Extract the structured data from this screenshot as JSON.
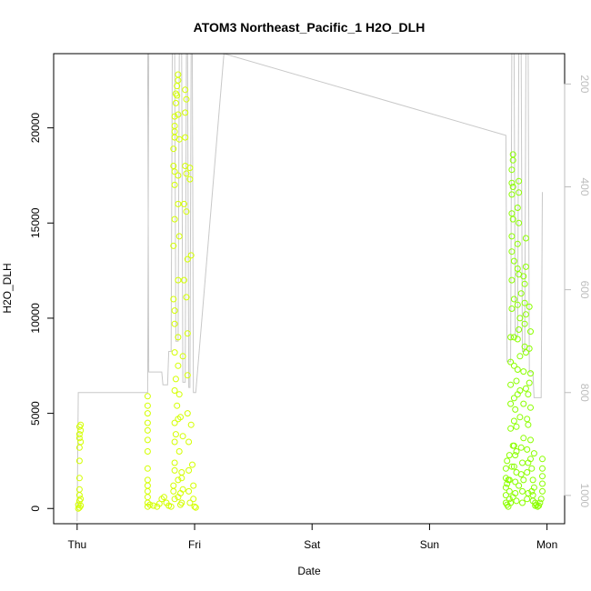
{
  "chart_data": {
    "type": "scatter",
    "title": "ATOM3 Northeast_Pacific_1 H2O_DLH",
    "xlabel": "Date",
    "ylabel": "H2O_DLH",
    "x_ticks": [
      "Thu",
      "Fri",
      "Sat",
      "Sun",
      "Mon"
    ],
    "x_range_days": [
      -0.2,
      4.15
    ],
    "ylim": [
      -800,
      23900
    ],
    "y_ticks": [
      0,
      5000,
      10000,
      15000,
      20000
    ],
    "right_axis": {
      "ticks": [
        200,
        400,
        600,
        800,
        1000
      ],
      "range_top_to_bottom": [
        141,
        1055
      ],
      "line_color": "#c8c8c8",
      "tick_label_color": "#bdbdbd",
      "pressure_trace": [
        [
          0.0,
          1050
        ],
        [
          0.01,
          800
        ],
        [
          0.6,
          800
        ],
        [
          0.61,
          141
        ],
        [
          0.6,
          141
        ],
        [
          0.61,
          760
        ],
        [
          0.72,
          760
        ],
        [
          0.73,
          785
        ],
        [
          0.77,
          785
        ],
        [
          0.78,
          720
        ],
        [
          0.8,
          720
        ],
        [
          0.81,
          141
        ],
        [
          0.83,
          141
        ],
        [
          0.84,
          700
        ],
        [
          0.86,
          700
        ],
        [
          0.87,
          141
        ],
        [
          0.89,
          141
        ],
        [
          0.9,
          780
        ],
        [
          0.92,
          780
        ],
        [
          0.93,
          141
        ],
        [
          0.94,
          141
        ],
        [
          0.95,
          790
        ],
        [
          0.96,
          790
        ],
        [
          0.97,
          141
        ],
        [
          0.98,
          141
        ],
        [
          0.99,
          800
        ],
        [
          1.01,
          800
        ],
        [
          1.25,
          141
        ],
        [
          3.65,
          300
        ],
        [
          3.66,
          740
        ],
        [
          3.69,
          740
        ],
        [
          3.7,
          141
        ],
        [
          3.72,
          141
        ],
        [
          3.73,
          690
        ],
        [
          3.75,
          690
        ],
        [
          3.76,
          141
        ],
        [
          3.78,
          141
        ],
        [
          3.79,
          720
        ],
        [
          3.81,
          720
        ],
        [
          3.82,
          141
        ],
        [
          3.84,
          141
        ],
        [
          3.85,
          760
        ],
        [
          3.88,
          760
        ],
        [
          3.89,
          810
        ],
        [
          3.95,
          810
        ],
        [
          3.96,
          410
        ]
      ]
    },
    "series": [
      {
        "color": "#d4ff00",
        "points": [
          [
            0.01,
            0
          ],
          [
            0.01,
            200
          ],
          [
            0.02,
            400
          ],
          [
            0.02,
            700
          ],
          [
            0.02,
            1000
          ],
          [
            0.02,
            1600
          ],
          [
            0.02,
            2500
          ],
          [
            0.02,
            3200
          ],
          [
            0.03,
            3500
          ],
          [
            0.02,
            3700
          ],
          [
            0.02,
            3900
          ],
          [
            0.03,
            4100
          ],
          [
            0.02,
            4300
          ],
          [
            0.03,
            4400
          ],
          [
            0.03,
            500
          ],
          [
            0.03,
            150
          ],
          [
            0.02,
            50
          ],
          [
            0.6,
            100
          ],
          [
            0.6,
            300
          ],
          [
            0.6,
            600
          ],
          [
            0.6,
            900
          ],
          [
            0.6,
            1200
          ],
          [
            0.6,
            1500
          ],
          [
            0.6,
            2100
          ],
          [
            0.6,
            3000
          ],
          [
            0.6,
            3600
          ],
          [
            0.6,
            4100
          ],
          [
            0.6,
            4500
          ],
          [
            0.6,
            5000
          ],
          [
            0.6,
            5400
          ],
          [
            0.6,
            5900
          ],
          [
            0.62,
            200
          ],
          [
            0.65,
            150
          ],
          [
            0.68,
            100
          ],
          [
            0.7,
            250
          ],
          [
            0.72,
            500
          ],
          [
            0.74,
            600
          ],
          [
            0.76,
            300
          ],
          [
            0.78,
            150
          ],
          [
            0.8,
            100
          ],
          [
            0.82,
            1200
          ],
          [
            0.82,
            900
          ],
          [
            0.83,
            500
          ],
          [
            0.83,
            2000
          ],
          [
            0.83,
            2400
          ],
          [
            0.83,
            3500
          ],
          [
            0.84,
            3900
          ],
          [
            0.83,
            4500
          ],
          [
            0.83,
            6200
          ],
          [
            0.83,
            8200
          ],
          [
            0.83,
            9700
          ],
          [
            0.83,
            10400
          ],
          [
            0.82,
            11000
          ],
          [
            0.82,
            13800
          ],
          [
            0.83,
            15200
          ],
          [
            0.83,
            17000
          ],
          [
            0.83,
            17700
          ],
          [
            0.82,
            18000
          ],
          [
            0.82,
            18900
          ],
          [
            0.83,
            19500
          ],
          [
            0.83,
            19800
          ],
          [
            0.83,
            20100
          ],
          [
            0.83,
            20600
          ],
          [
            0.84,
            21300
          ],
          [
            0.84,
            21800
          ],
          [
            0.85,
            22200
          ],
          [
            0.86,
            22500
          ],
          [
            0.86,
            22800
          ],
          [
            0.85,
            21700
          ],
          [
            0.86,
            20700
          ],
          [
            0.87,
            19400
          ],
          [
            0.86,
            17500
          ],
          [
            0.86,
            16000
          ],
          [
            0.87,
            14300
          ],
          [
            0.86,
            12000
          ],
          [
            0.86,
            9000
          ],
          [
            0.86,
            7500
          ],
          [
            0.87,
            6000
          ],
          [
            0.86,
            4700
          ],
          [
            0.87,
            3000
          ],
          [
            0.86,
            1500
          ],
          [
            0.86,
            600
          ],
          [
            0.88,
            200
          ],
          [
            0.88,
            800
          ],
          [
            0.89,
            1600
          ],
          [
            0.89,
            1900
          ],
          [
            0.9,
            1000
          ],
          [
            0.9,
            3800
          ],
          [
            0.9,
            8000
          ],
          [
            0.91,
            12000
          ],
          [
            0.91,
            16000
          ],
          [
            0.92,
            18000
          ],
          [
            0.92,
            19500
          ],
          [
            0.92,
            20800
          ],
          [
            0.93,
            21500
          ],
          [
            0.92,
            22000
          ],
          [
            0.93,
            17600
          ],
          [
            0.93,
            15600
          ],
          [
            0.94,
            13100
          ],
          [
            0.93,
            11100
          ],
          [
            0.94,
            9200
          ],
          [
            0.94,
            7000
          ],
          [
            0.94,
            5000
          ],
          [
            0.95,
            3500
          ],
          [
            0.95,
            2000
          ],
          [
            0.95,
            900
          ],
          [
            0.96,
            300
          ],
          [
            0.96,
            17900
          ],
          [
            0.96,
            17300
          ],
          [
            0.97,
            13300
          ],
          [
            0.97,
            4400
          ],
          [
            0.98,
            2300
          ],
          [
            0.99,
            1200
          ],
          [
            0.99,
            500
          ],
          [
            1.0,
            100
          ],
          [
            1.01,
            50
          ],
          [
            0.88,
            4800
          ],
          [
            0.85,
            5400
          ],
          [
            0.84,
            6800
          ],
          [
            0.89,
            300
          ]
        ]
      },
      {
        "color": "#8cff00",
        "points": [
          [
            3.65,
            300
          ],
          [
            3.65,
            700
          ],
          [
            3.65,
            1100
          ],
          [
            3.65,
            1600
          ],
          [
            3.65,
            2100
          ],
          [
            3.66,
            200
          ],
          [
            3.67,
            100
          ],
          [
            3.68,
            500
          ],
          [
            3.68,
            1500
          ],
          [
            3.68,
            2800
          ],
          [
            3.69,
            4200
          ],
          [
            3.69,
            5500
          ],
          [
            3.69,
            6500
          ],
          [
            3.69,
            7700
          ],
          [
            3.69,
            9000
          ],
          [
            3.7,
            10500
          ],
          [
            3.7,
            12000
          ],
          [
            3.7,
            13500
          ],
          [
            3.7,
            14300
          ],
          [
            3.7,
            15500
          ],
          [
            3.7,
            16500
          ],
          [
            3.7,
            17100
          ],
          [
            3.7,
            17800
          ],
          [
            3.71,
            18300
          ],
          [
            3.71,
            18600
          ],
          [
            3.71,
            16900
          ],
          [
            3.71,
            15200
          ],
          [
            3.72,
            13000
          ],
          [
            3.72,
            11000
          ],
          [
            3.72,
            9000
          ],
          [
            3.72,
            7500
          ],
          [
            3.72,
            5800
          ],
          [
            3.72,
            4600
          ],
          [
            3.72,
            3300
          ],
          [
            3.72,
            2200
          ],
          [
            3.73,
            1400
          ],
          [
            3.73,
            800
          ],
          [
            3.74,
            400
          ],
          [
            3.74,
            1900
          ],
          [
            3.74,
            3000
          ],
          [
            3.74,
            4300
          ],
          [
            3.75,
            6000
          ],
          [
            3.75,
            7300
          ],
          [
            3.75,
            8900
          ],
          [
            3.75,
            10700
          ],
          [
            3.75,
            12600
          ],
          [
            3.75,
            13900
          ],
          [
            3.75,
            15800
          ],
          [
            3.76,
            16600
          ],
          [
            3.76,
            17200
          ],
          [
            3.76,
            15000
          ],
          [
            3.76,
            12300
          ],
          [
            3.77,
            10000
          ],
          [
            3.77,
            8000
          ],
          [
            3.77,
            6200
          ],
          [
            3.77,
            4800
          ],
          [
            3.78,
            3200
          ],
          [
            3.78,
            1800
          ],
          [
            3.79,
            900
          ],
          [
            3.79,
            300
          ],
          [
            3.8,
            1500
          ],
          [
            3.8,
            3700
          ],
          [
            3.8,
            5500
          ],
          [
            3.8,
            7200
          ],
          [
            3.81,
            8500
          ],
          [
            3.81,
            9700
          ],
          [
            3.81,
            10800
          ],
          [
            3.81,
            11800
          ],
          [
            3.82,
            12700
          ],
          [
            3.82,
            10200
          ],
          [
            3.82,
            8200
          ],
          [
            3.82,
            6300
          ],
          [
            3.83,
            4700
          ],
          [
            3.83,
            3100
          ],
          [
            3.83,
            1900
          ],
          [
            3.84,
            800
          ],
          [
            3.84,
            2400
          ],
          [
            3.84,
            4400
          ],
          [
            3.85,
            6600
          ],
          [
            3.85,
            8400
          ],
          [
            3.85,
            10600
          ],
          [
            3.86,
            9300
          ],
          [
            3.86,
            7100
          ],
          [
            3.86,
            5300
          ],
          [
            3.86,
            3600
          ],
          [
            3.87,
            2100
          ],
          [
            3.87,
            900
          ],
          [
            3.88,
            400
          ],
          [
            3.88,
            1500
          ],
          [
            3.89,
            2900
          ],
          [
            3.89,
            1100
          ],
          [
            3.9,
            300
          ],
          [
            3.91,
            200
          ],
          [
            3.92,
            100
          ],
          [
            3.93,
            150
          ],
          [
            3.94,
            300
          ],
          [
            3.95,
            500
          ],
          [
            3.96,
            900
          ],
          [
            3.96,
            1300
          ],
          [
            3.96,
            1700
          ],
          [
            3.96,
            2100
          ],
          [
            3.96,
            2600
          ],
          [
            3.66,
            2500
          ],
          [
            3.67,
            1500
          ],
          [
            3.69,
            300
          ],
          [
            3.71,
            600
          ],
          [
            3.73,
            2800
          ],
          [
            3.76,
            1200
          ],
          [
            3.79,
            2400
          ],
          [
            3.83,
            500
          ],
          [
            3.66,
            1300
          ],
          [
            3.68,
            900
          ],
          [
            3.7,
            2200
          ],
          [
            3.71,
            3300
          ],
          [
            3.73,
            5200
          ],
          [
            3.74,
            6700
          ],
          [
            3.76,
            9400
          ],
          [
            3.78,
            11300
          ],
          [
            3.8,
            12200
          ],
          [
            3.82,
            14200
          ],
          [
            3.84,
            6000
          ],
          [
            3.86,
            2600
          ],
          [
            3.88,
            700
          ],
          [
            3.9,
            150
          ]
        ]
      }
    ]
  }
}
